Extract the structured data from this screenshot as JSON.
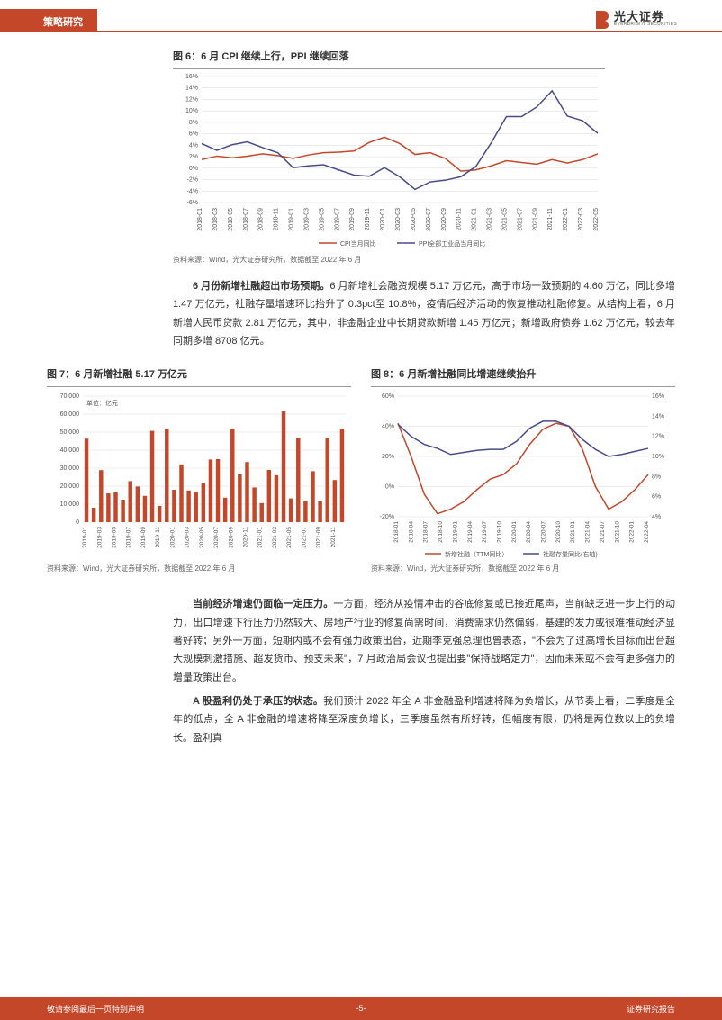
{
  "header": {
    "section": "策略研究",
    "brand_cn": "光大证券",
    "brand_en": "EVERBRIGHT SECURITIES"
  },
  "chart6": {
    "title": "图 6：6 月 CPI 继续上行，PPI 继续回落",
    "source": "资料来源：Wind，光大证券研究所，数据截至 2022 年 6 月",
    "type": "line",
    "ylim": [
      -6,
      16
    ],
    "yticks": [
      -6,
      -4,
      -2,
      0,
      2,
      4,
      6,
      8,
      10,
      12,
      14,
      16
    ],
    "ytick_suffix": "%",
    "x_labels": [
      "2018-01",
      "2018-03",
      "2018-05",
      "2018-07",
      "2018-09",
      "2018-11",
      "2019-01",
      "2019-03",
      "2019-05",
      "2019-07",
      "2019-09",
      "2019-11",
      "2020-01",
      "2020-03",
      "2020-05",
      "2020-07",
      "2020-09",
      "2020-11",
      "2021-01",
      "2021-03",
      "2021-05",
      "2021-07",
      "2021-09",
      "2021-11",
      "2022-01",
      "2022-03",
      "2022-05"
    ],
    "series": [
      {
        "name": "CPI当月同比",
        "color": "#c4472a",
        "values": [
          1.5,
          2.1,
          1.8,
          2.1,
          2.5,
          2.2,
          1.7,
          2.3,
          2.7,
          2.8,
          3.0,
          4.5,
          5.4,
          4.3,
          2.4,
          2.7,
          1.7,
          -0.5,
          -0.3,
          0.4,
          1.3,
          1.0,
          0.7,
          1.5,
          0.9,
          1.5,
          2.5
        ]
      },
      {
        "name": "PPI全部工业品当月同比",
        "color": "#4a4a8a",
        "values": [
          4.3,
          3.1,
          4.1,
          4.6,
          3.6,
          2.7,
          0.1,
          0.4,
          0.6,
          -0.3,
          -1.2,
          -1.4,
          0.1,
          -1.5,
          -3.7,
          -2.4,
          -2.1,
          -1.5,
          0.3,
          4.4,
          9.0,
          9.0,
          10.7,
          13.5,
          9.1,
          8.3,
          6.1
        ]
      }
    ],
    "legend_pos": "bottom",
    "background": "#ffffff",
    "grid_color": "#d9d9d9",
    "axis_font_size": 7
  },
  "para1": {
    "bold": "6 月份新增社融超出市场预期。",
    "text": "6 月新增社会融资规模 5.17 万亿元，高于市场一致预期的 4.60 万亿，同比多增 1.47 万亿元，社融存量增速环比抬升了 0.3pct至 10.8%，疫情后经济活动的恢复推动社融修复。从结构上看，6 月新增人民币贷款 2.81 万亿元，其中，非金融企业中长期贷款新增 1.45 万亿元；新增政府债券 1.62 万亿元，较去年同期多增 8708 亿元。"
  },
  "chart7": {
    "title": "图 7：6 月新增社融 5.17 万亿元",
    "source": "资料来源：Wind，光大证券研究所，数据截至 2022 年 6 月",
    "type": "bar",
    "unit_label": "单位：亿元",
    "ylim": [
      0,
      70000
    ],
    "yticks": [
      0,
      10000,
      20000,
      30000,
      40000,
      50000,
      60000,
      70000
    ],
    "x_labels": [
      "2019-01",
      "2019-03",
      "2019-05",
      "2019-07",
      "2019-09",
      "2019-11",
      "2020-01",
      "2020-03",
      "2020-05",
      "2020-07",
      "2020-09",
      "2020-11",
      "2021-01",
      "2021-03",
      "2021-05",
      "2021-07",
      "2021-09",
      "2021-11",
      "2022-01",
      "2022-03",
      "2022-05"
    ],
    "values": [
      46400,
      8000,
      28900,
      16000,
      16800,
      12500,
      22800,
      19800,
      14600,
      50700,
      9000,
      51800,
      18000,
      31900,
      17600,
      16900,
      21700,
      34800,
      35000,
      13600,
      51900,
      26500,
      33400,
      19300,
      10600,
      29000,
      26100,
      61700,
      13200,
      46500,
      12000,
      28300,
      11700,
      46700,
      23400,
      51700
    ],
    "bar_color": "#c4472a",
    "background": "#ffffff",
    "grid_color": "#d9d9d9",
    "axis_font_size": 7,
    "bar_width": 0.55
  },
  "chart8": {
    "title": "图 8：6 月新增社融同比增速继续抬升",
    "source": "资料来源：Wind，光大证券研究所，数据截至 2022 年 6 月",
    "type": "dual-axis-line",
    "y1_lim": [
      -20,
      60
    ],
    "y1_ticks": [
      -20,
      0,
      20,
      40,
      60
    ],
    "y1_suffix": "%",
    "y2_lim": [
      4,
      16
    ],
    "y2_ticks": [
      4,
      6,
      8,
      10,
      12,
      14,
      16
    ],
    "y2_suffix": "%",
    "x_labels": [
      "2018-01",
      "2018-04",
      "2018-07",
      "2018-10",
      "2019-01",
      "2019-04",
      "2019-07",
      "2019-10",
      "2020-01",
      "2020-04",
      "2020-07",
      "2020-10",
      "2021-01",
      "2021-04",
      "2021-07",
      "2021-10",
      "2022-01",
      "2022-04"
    ],
    "series": [
      {
        "name": "新增社融（TTM同比）",
        "axis": "left",
        "color": "#c4472a",
        "values": [
          42,
          20,
          -5,
          -18,
          -15,
          -10,
          -2,
          5,
          8,
          15,
          28,
          38,
          42,
          40,
          25,
          0,
          -15,
          -10,
          -2,
          8
        ]
      },
      {
        "name": "社融存量同比(右轴)",
        "axis": "right",
        "color": "#4a4a8a",
        "values": [
          13.2,
          12.0,
          11.2,
          10.8,
          10.2,
          10.4,
          10.6,
          10.7,
          10.7,
          11.5,
          12.8,
          13.5,
          13.5,
          13.0,
          11.7,
          10.7,
          10.0,
          10.2,
          10.5,
          10.8
        ]
      }
    ],
    "background": "#ffffff",
    "grid_color": "#d9d9d9",
    "axis_font_size": 7
  },
  "para2": {
    "bold": "当前经济增速仍面临一定压力。",
    "text": "一方面，经济从疫情冲击的谷底修复或已接近尾声，当前缺乏进一步上行的动力，出口增速下行压力仍然较大、房地产行业的修复尚需时间，消费需求仍然偏弱，基建的发力或很难推动经济显著好转；另外一方面，短期内或不会有强力政策出台，近期李克强总理也曾表态，\"不会为了过高增长目标而出台超大规模刺激措施、超发货币、预支未来\"，7 月政治局会议也提出要\"保持战略定力\"，因而未来或不会有更多强力的增量政策出台。"
  },
  "para3": {
    "bold": "A 股盈利仍处于承压的状态。",
    "text": "我们预计 2022 年全 A 非金融盈利增速将降为负增长，从节奏上看，二季度是全年的低点，全 A 非金融的增速将降至深度负增长，三季度虽然有所好转，但幅度有限，仍将是两位数以上的负增长。盈利真"
  },
  "footer": {
    "left": "敬请参阅最后一页特别声明",
    "mid": "-5-",
    "right": "证券研究报告"
  },
  "colors": {
    "brand_orange": "#c4472a",
    "series_red": "#c4472a",
    "series_navy": "#4a4a8a",
    "grid": "#d9d9d9",
    "text": "#333333",
    "light_text": "#666666"
  }
}
